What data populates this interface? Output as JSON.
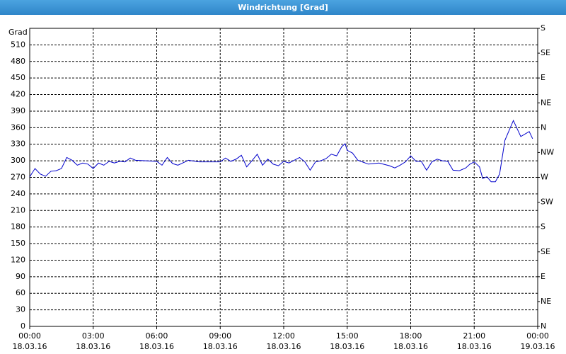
{
  "chart_data": {
    "type": "line",
    "title": "Windrichtung [Grad]",
    "y_label": "Grad",
    "x": [
      0,
      0.25,
      0.5,
      0.75,
      1.0,
      1.25,
      1.5,
      1.75,
      2.0,
      2.25,
      2.5,
      2.75,
      3.0,
      3.25,
      3.5,
      3.75,
      4.0,
      4.25,
      4.5,
      4.75,
      5.0,
      5.5,
      6.0,
      6.25,
      6.5,
      6.75,
      7.0,
      7.5,
      8.0,
      8.5,
      9.0,
      9.25,
      9.5,
      9.75,
      10.0,
      10.25,
      10.5,
      10.75,
      11.0,
      11.25,
      11.5,
      11.75,
      12.0,
      12.25,
      12.5,
      12.75,
      13.0,
      13.25,
      13.5,
      13.75,
      14.0,
      14.25,
      14.5,
      14.75,
      14.9,
      15.0,
      15.25,
      15.5,
      16.0,
      16.5,
      17.0,
      17.25,
      17.5,
      17.75,
      18.0,
      18.25,
      18.5,
      18.75,
      19.0,
      19.25,
      19.5,
      19.75,
      20.0,
      20.3,
      20.6,
      20.8,
      21.0,
      21.25,
      21.4,
      21.6,
      21.8,
      22.0,
      22.2,
      22.45,
      22.85,
      23.2,
      23.6,
      23.76
    ],
    "series": [
      {
        "color": "#0000cc",
        "values": [
          271,
          286,
          276,
          272,
          281,
          282,
          286,
          306,
          301,
          292,
          296,
          294,
          286,
          296,
          292,
          299,
          296,
          299,
          298,
          305,
          301,
          300,
          299,
          292,
          306,
          295,
          292,
          301,
          298,
          298,
          298,
          305,
          299,
          303,
          310,
          289,
          300,
          312,
          292,
          303,
          294,
          291,
          299,
          296,
          301,
          306,
          298,
          283,
          298,
          300,
          304,
          312,
          309,
          326,
          331,
          319,
          314,
          301,
          294,
          296,
          291,
          287,
          292,
          298,
          309,
          299,
          299,
          283,
          298,
          303,
          300,
          299,
          283,
          282,
          287,
          294,
          298,
          289,
          268,
          271,
          262,
          262,
          276,
          337,
          373,
          344,
          353,
          340
        ]
      }
    ],
    "xlim": [
      0,
      24
    ],
    "xticks": [
      {
        "value": 0,
        "label": "00:00",
        "date": "18.03.16"
      },
      {
        "value": 3,
        "label": "03:00",
        "date": "18.03.16"
      },
      {
        "value": 6,
        "label": "06:00",
        "date": "18.03.16"
      },
      {
        "value": 9,
        "label": "09:00",
        "date": "18.03.16"
      },
      {
        "value": 12,
        "label": "12:00",
        "date": "18.03.16"
      },
      {
        "value": 15,
        "label": "15:00",
        "date": "18.03.16"
      },
      {
        "value": 18,
        "label": "18:00",
        "date": "18.03.16"
      },
      {
        "value": 21,
        "label": "21:00",
        "date": "18.03.16"
      },
      {
        "value": 24,
        "label": "00:00",
        "date": "19.03.16"
      }
    ],
    "ylim": [
      0,
      540
    ],
    "yticks": [
      0,
      30,
      60,
      90,
      120,
      150,
      180,
      210,
      240,
      270,
      300,
      330,
      360,
      390,
      420,
      450,
      480,
      510
    ],
    "y2lim": [
      0,
      540
    ],
    "y2ticks": [
      {
        "value": 0,
        "label": "N"
      },
      {
        "value": 45,
        "label": "NE"
      },
      {
        "value": 90,
        "label": "E"
      },
      {
        "value": 135,
        "label": "SE"
      },
      {
        "value": 180,
        "label": "S"
      },
      {
        "value": 225,
        "label": "SW"
      },
      {
        "value": 270,
        "label": "W"
      },
      {
        "value": 315,
        "label": "NW"
      },
      {
        "value": 360,
        "label": "N"
      },
      {
        "value": 405,
        "label": "NE"
      },
      {
        "value": 450,
        "label": "E"
      },
      {
        "value": 495,
        "label": "SE"
      },
      {
        "value": 540,
        "label": "S"
      }
    ],
    "grid": true
  }
}
